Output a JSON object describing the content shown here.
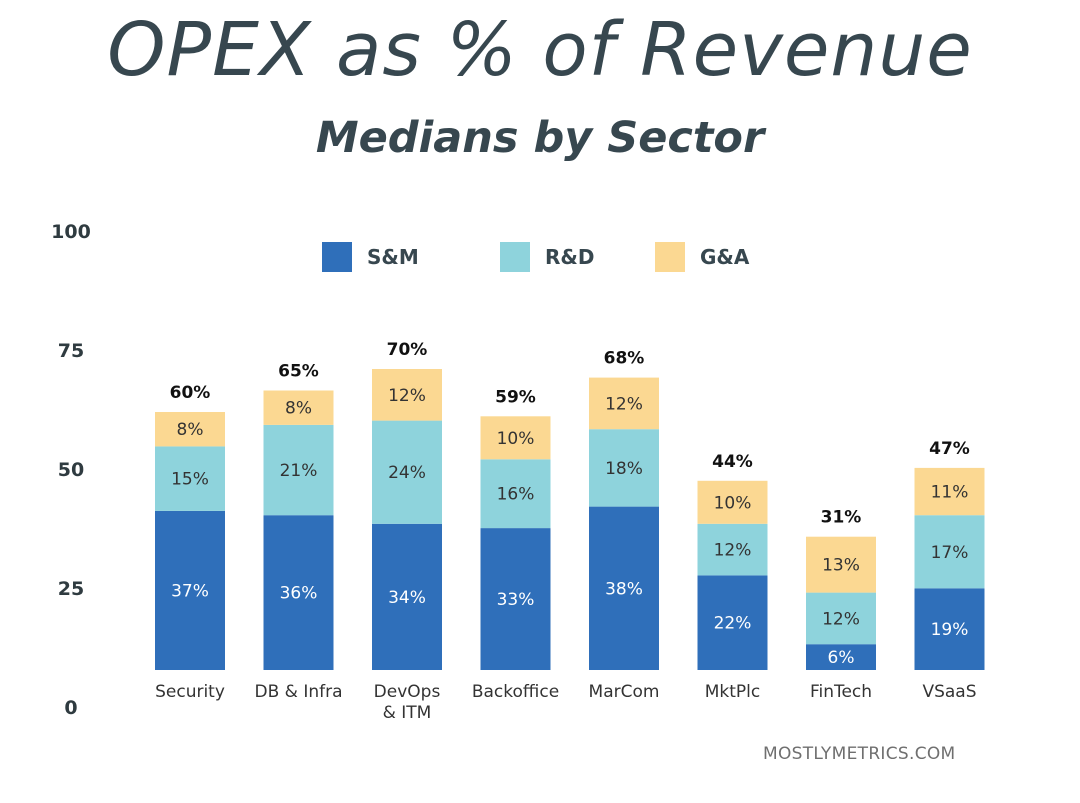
{
  "chart_data": {
    "type": "bar",
    "stacked": true,
    "title": "OPEX as % of Revenue",
    "subtitle": "Medians by Sector",
    "categories": [
      [
        "Security"
      ],
      [
        "DB & Infra"
      ],
      [
        "DevOps",
        "& ITM"
      ],
      [
        "Backoffice"
      ],
      [
        "MarCom"
      ],
      [
        "MktPlc"
      ],
      [
        "FinTech"
      ],
      [
        "VSaaS"
      ]
    ],
    "series": [
      {
        "name": "S&M",
        "color": "#2f6fba",
        "label_color": "#ffffff",
        "values": [
          37,
          36,
          34,
          33,
          38,
          22,
          6,
          19
        ]
      },
      {
        "name": "R&D",
        "color": "#8ed3dc",
        "label_color": "#333333",
        "values": [
          15,
          21,
          24,
          16,
          18,
          12,
          12,
          17
        ]
      },
      {
        "name": "G&A",
        "color": "#fbd892",
        "label_color": "#333333",
        "values": [
          8,
          8,
          12,
          10,
          12,
          10,
          13,
          11
        ]
      }
    ],
    "value_labels": [
      [
        "37%",
        "36%",
        "34%",
        "33%",
        "38%",
        "22%",
        "6%",
        "19%"
      ],
      [
        "15%",
        "21%",
        "24%",
        "16%",
        "18%",
        "12%",
        "12%",
        "17%"
      ],
      [
        "8%",
        "8%",
        "12%",
        "10%",
        "12%",
        "10%",
        "13%",
        "11%"
      ]
    ],
    "totals": [
      "60%",
      "65%",
      "70%",
      "59%",
      "68%",
      "44%",
      "31%",
      "47%"
    ],
    "y_ticks": [
      "0",
      "25",
      "50",
      "75",
      "100"
    ],
    "y_tick_values": [
      0,
      25,
      50,
      75,
      100
    ],
    "ylim": [
      0,
      100
    ],
    "legend_position": "top",
    "grid": false
  },
  "source": "MOSTLYMETRICS.COM"
}
